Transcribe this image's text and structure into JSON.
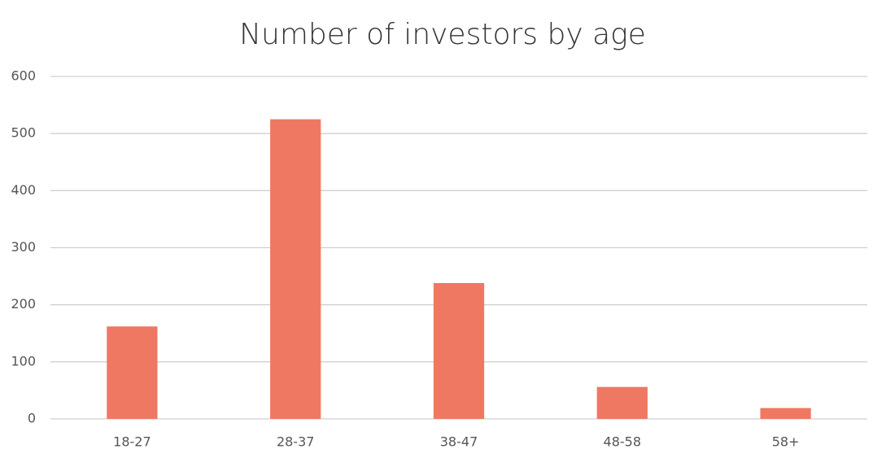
{
  "chart_data": {
    "type": "bar",
    "title": "Number of investors by age",
    "categories": [
      "18-27",
      "28-37",
      "38-47",
      "48-58",
      "58+"
    ],
    "values": [
      162,
      525,
      238,
      56,
      19
    ],
    "color": "#ef7862",
    "ylim": [
      0,
      600
    ],
    "yticks": [
      0,
      100,
      200,
      300,
      400,
      500,
      600
    ],
    "grid": true
  }
}
